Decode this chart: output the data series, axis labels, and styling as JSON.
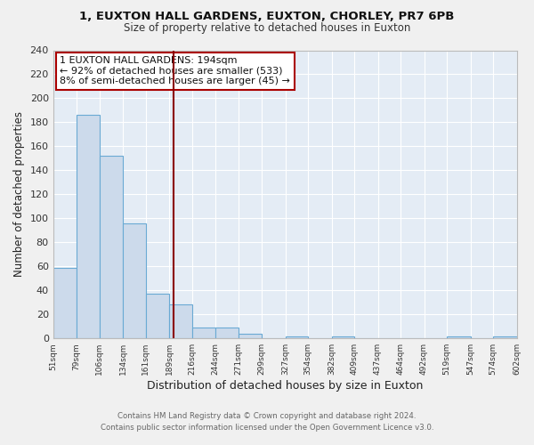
{
  "title_line1": "1, EUXTON HALL GARDENS, EUXTON, CHORLEY, PR7 6PB",
  "title_line2": "Size of property relative to detached houses in Euxton",
  "xlabel": "Distribution of detached houses by size in Euxton",
  "ylabel": "Number of detached properties",
  "bar_edges": [
    51,
    79,
    106,
    134,
    161,
    189,
    216,
    244,
    271,
    299,
    327,
    354,
    382,
    409,
    437,
    464,
    492,
    519,
    547,
    574,
    602
  ],
  "bar_heights": [
    59,
    186,
    152,
    96,
    37,
    28,
    9,
    9,
    4,
    0,
    2,
    0,
    2,
    0,
    0,
    0,
    0,
    2,
    0,
    2
  ],
  "bar_color": "#ccdaeb",
  "bar_edge_color": "#6aaad4",
  "vline_x": 194,
  "vline_color": "#8b0000",
  "ylim": [
    0,
    240
  ],
  "yticks": [
    0,
    20,
    40,
    60,
    80,
    100,
    120,
    140,
    160,
    180,
    200,
    220,
    240
  ],
  "annotation_title": "1 EUXTON HALL GARDENS: 194sqm",
  "annotation_line1": "← 92% of detached houses are smaller (533)",
  "annotation_line2": "8% of semi-detached houses are larger (45) →",
  "annotation_box_color": "#ffffff",
  "annotation_box_edge": "#aa0000",
  "footer_line1": "Contains HM Land Registry data © Crown copyright and database right 2024.",
  "footer_line2": "Contains public sector information licensed under the Open Government Licence v3.0.",
  "bg_color": "#f0f0f0",
  "plot_bg_color": "#e4ecf5"
}
